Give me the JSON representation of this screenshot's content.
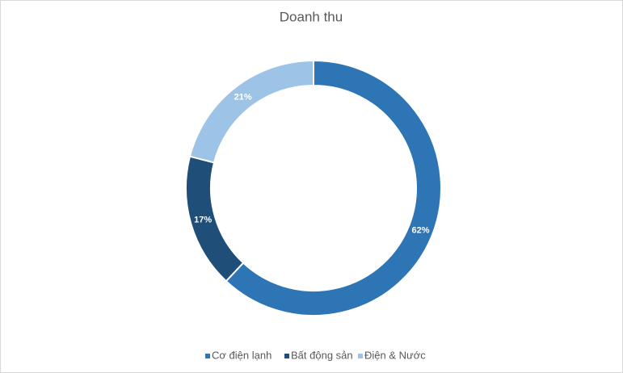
{
  "chart_data": {
    "type": "doughnut",
    "title": "Doanh thu",
    "categories": [
      "Cơ điện lạnh",
      "Bất động sản",
      "Điện & Nước"
    ],
    "values": [
      62,
      17,
      21
    ],
    "value_labels": [
      "62%",
      "17%",
      "21%"
    ],
    "colors": [
      "#2e75b6",
      "#1f4e79",
      "#9dc3e6"
    ],
    "legend": "bottom"
  }
}
